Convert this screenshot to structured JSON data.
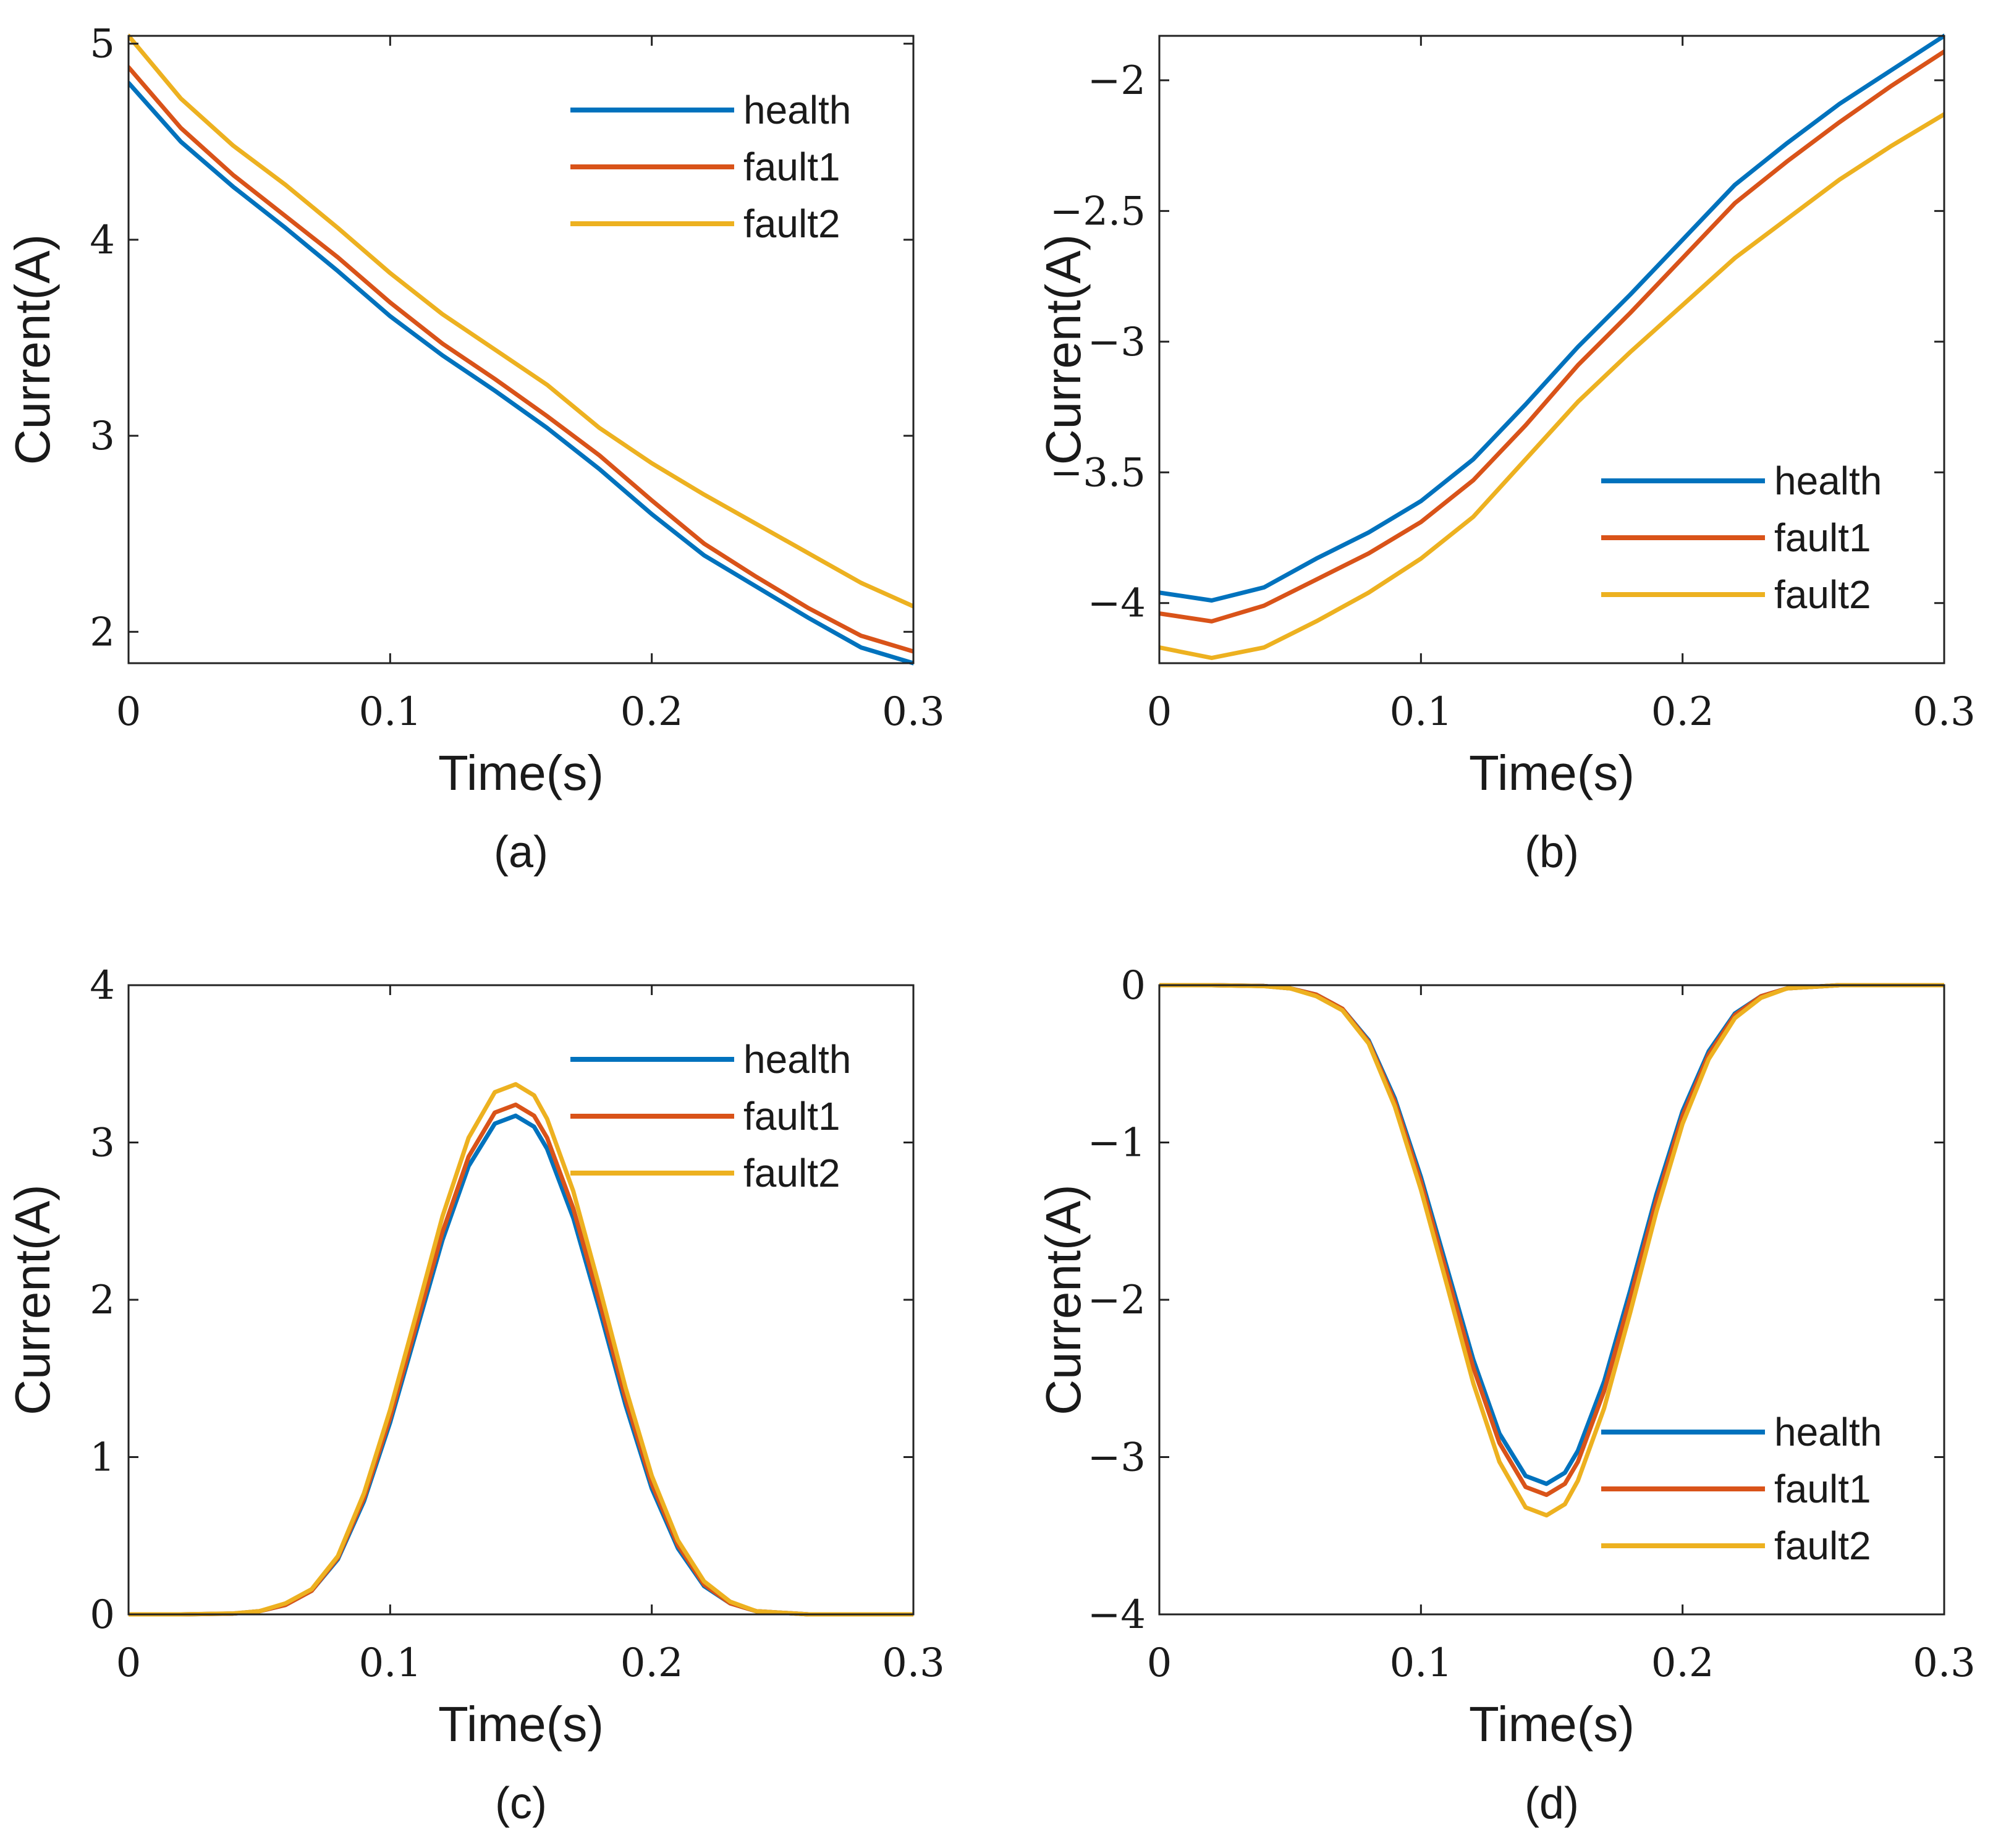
{
  "chart_data": [
    {
      "panel": "(a)",
      "type": "line",
      "xlabel": "Time(s)",
      "ylabel": "Current(A)",
      "xlim": [
        0,
        0.3
      ],
      "ylim": [
        1.84,
        5.04
      ],
      "xticks": [
        0,
        0.1,
        0.2,
        0.3
      ],
      "xtick_labels": [
        "0",
        "0.1",
        "0.2",
        "0.3"
      ],
      "yticks": [
        2,
        3,
        4,
        5
      ],
      "ytick_labels": [
        "2",
        "3",
        "4",
        "5"
      ],
      "legend_position": "top-right",
      "x": [
        0,
        0.02,
        0.04,
        0.06,
        0.08,
        0.1,
        0.12,
        0.14,
        0.16,
        0.18,
        0.2,
        0.22,
        0.24,
        0.26,
        0.28,
        0.3
      ],
      "series": [
        {
          "name": "health",
          "color": "#0072BD",
          "values": [
            4.8,
            4.5,
            4.27,
            4.06,
            3.84,
            3.61,
            3.41,
            3.23,
            3.04,
            2.83,
            2.6,
            2.39,
            2.23,
            2.07,
            1.92,
            1.84
          ]
        },
        {
          "name": "fault1",
          "color": "#D95319",
          "values": [
            4.88,
            4.57,
            4.33,
            4.12,
            3.91,
            3.68,
            3.47,
            3.29,
            3.1,
            2.9,
            2.67,
            2.45,
            2.28,
            2.12,
            1.98,
            1.9
          ]
        },
        {
          "name": "fault2",
          "color": "#EDB120",
          "values": [
            5.04,
            4.72,
            4.48,
            4.28,
            4.06,
            3.83,
            3.62,
            3.44,
            3.26,
            3.04,
            2.86,
            2.7,
            2.55,
            2.4,
            2.25,
            2.13
          ]
        }
      ]
    },
    {
      "panel": "(b)",
      "type": "line",
      "xlabel": "Time(s)",
      "ylabel": "Current(A)",
      "xlim": [
        0,
        0.3
      ],
      "ylim": [
        -4.23,
        -1.83
      ],
      "xticks": [
        0,
        0.1,
        0.2,
        0.3
      ],
      "xtick_labels": [
        "0",
        "0.1",
        "0.2",
        "0.3"
      ],
      "yticks": [
        -4,
        -3.5,
        -3,
        -2.5,
        -2
      ],
      "ytick_labels": [
        "−4",
        "−3.5",
        "−3",
        "−2.5",
        "−2"
      ],
      "legend_position": "bottom-right",
      "x": [
        0,
        0.02,
        0.04,
        0.06,
        0.08,
        0.1,
        0.12,
        0.14,
        0.16,
        0.18,
        0.2,
        0.22,
        0.24,
        0.26,
        0.28,
        0.3
      ],
      "series": [
        {
          "name": "health",
          "color": "#0072BD",
          "values": [
            -3.96,
            -3.99,
            -3.94,
            -3.83,
            -3.73,
            -3.61,
            -3.45,
            -3.24,
            -3.02,
            -2.82,
            -2.61,
            -2.4,
            -2.24,
            -2.09,
            -1.96,
            -1.83
          ]
        },
        {
          "name": "fault1",
          "color": "#D95319",
          "values": [
            -4.04,
            -4.07,
            -4.01,
            -3.91,
            -3.81,
            -3.69,
            -3.53,
            -3.32,
            -3.09,
            -2.89,
            -2.68,
            -2.47,
            -2.31,
            -2.16,
            -2.02,
            -1.89
          ]
        },
        {
          "name": "fault2",
          "color": "#EDB120",
          "values": [
            -4.17,
            -4.21,
            -4.17,
            -4.07,
            -3.96,
            -3.83,
            -3.67,
            -3.45,
            -3.23,
            -3.04,
            -2.86,
            -2.68,
            -2.53,
            -2.38,
            -2.25,
            -2.13
          ]
        }
      ]
    },
    {
      "panel": "(c)",
      "type": "line",
      "xlabel": "Time(s)",
      "ylabel": "Current(A)",
      "xlim": [
        0,
        0.3
      ],
      "ylim": [
        0,
        4
      ],
      "xticks": [
        0,
        0.1,
        0.2,
        0.3
      ],
      "xtick_labels": [
        "0",
        "0.1",
        "0.2",
        "0.3"
      ],
      "yticks": [
        0,
        1,
        2,
        3,
        4
      ],
      "ytick_labels": [
        "0",
        "1",
        "2",
        "3",
        "4"
      ],
      "legend_position": "top-right",
      "x": [
        0,
        0.02,
        0.04,
        0.05,
        0.06,
        0.07,
        0.08,
        0.09,
        0.1,
        0.11,
        0.12,
        0.13,
        0.14,
        0.148,
        0.155,
        0.16,
        0.17,
        0.18,
        0.19,
        0.2,
        0.21,
        0.22,
        0.23,
        0.24,
        0.26,
        0.28,
        0.3
      ],
      "series": [
        {
          "name": "health",
          "color": "#0072BD",
          "values": [
            0,
            0,
            0.005,
            0.02,
            0.06,
            0.15,
            0.35,
            0.72,
            1.22,
            1.8,
            2.38,
            2.85,
            3.12,
            3.17,
            3.1,
            2.96,
            2.52,
            1.94,
            1.33,
            0.8,
            0.42,
            0.18,
            0.07,
            0.02,
            0,
            0,
            0
          ]
        },
        {
          "name": "fault1",
          "color": "#D95319",
          "values": [
            0,
            0,
            0.005,
            0.02,
            0.06,
            0.15,
            0.36,
            0.74,
            1.25,
            1.84,
            2.43,
            2.91,
            3.19,
            3.24,
            3.17,
            3.03,
            2.58,
            1.99,
            1.37,
            0.83,
            0.44,
            0.19,
            0.07,
            0.02,
            0,
            0,
            0
          ]
        },
        {
          "name": "fault2",
          "color": "#EDB120",
          "values": [
            0,
            0,
            0.006,
            0.02,
            0.07,
            0.16,
            0.37,
            0.77,
            1.3,
            1.91,
            2.53,
            3.03,
            3.32,
            3.37,
            3.3,
            3.15,
            2.69,
            2.08,
            1.44,
            0.88,
            0.47,
            0.21,
            0.08,
            0.02,
            0,
            0,
            0
          ]
        }
      ]
    },
    {
      "panel": "(d)",
      "type": "line",
      "xlabel": "Time(s)",
      "ylabel": "Current(A)",
      "xlim": [
        0,
        0.3
      ],
      "ylim": [
        -4,
        0
      ],
      "xticks": [
        0,
        0.1,
        0.2,
        0.3
      ],
      "xtick_labels": [
        "0",
        "0.1",
        "0.2",
        "0.3"
      ],
      "yticks": [
        -4,
        -3,
        -2,
        -1,
        0
      ],
      "ytick_labels": [
        "−4",
        "−3",
        "−2",
        "−1",
        "0"
      ],
      "legend_position": "bottom-right",
      "x": [
        0,
        0.02,
        0.04,
        0.05,
        0.06,
        0.07,
        0.08,
        0.09,
        0.1,
        0.11,
        0.12,
        0.13,
        0.14,
        0.148,
        0.155,
        0.16,
        0.17,
        0.18,
        0.19,
        0.2,
        0.21,
        0.22,
        0.23,
        0.24,
        0.26,
        0.28,
        0.3
      ],
      "series": [
        {
          "name": "health",
          "color": "#0072BD",
          "values": [
            0,
            0,
            -0.005,
            -0.02,
            -0.06,
            -0.15,
            -0.35,
            -0.72,
            -1.22,
            -1.8,
            -2.38,
            -2.85,
            -3.12,
            -3.17,
            -3.1,
            -2.96,
            -2.52,
            -1.94,
            -1.33,
            -0.8,
            -0.42,
            -0.18,
            -0.07,
            -0.02,
            0,
            0,
            0
          ]
        },
        {
          "name": "fault1",
          "color": "#D95319",
          "values": [
            0,
            0,
            -0.005,
            -0.02,
            -0.06,
            -0.15,
            -0.36,
            -0.74,
            -1.25,
            -1.84,
            -2.43,
            -2.91,
            -3.19,
            -3.24,
            -3.17,
            -3.03,
            -2.58,
            -1.99,
            -1.37,
            -0.83,
            -0.44,
            -0.19,
            -0.07,
            -0.02,
            0,
            0,
            0
          ]
        },
        {
          "name": "fault2",
          "color": "#EDB120",
          "values": [
            0,
            0,
            -0.006,
            -0.02,
            -0.07,
            -0.16,
            -0.37,
            -0.77,
            -1.3,
            -1.91,
            -2.53,
            -3.03,
            -3.32,
            -3.37,
            -3.3,
            -3.15,
            -2.69,
            -2.08,
            -1.44,
            -0.88,
            -0.47,
            -0.21,
            -0.08,
            -0.02,
            0,
            0,
            0
          ]
        }
      ]
    }
  ]
}
